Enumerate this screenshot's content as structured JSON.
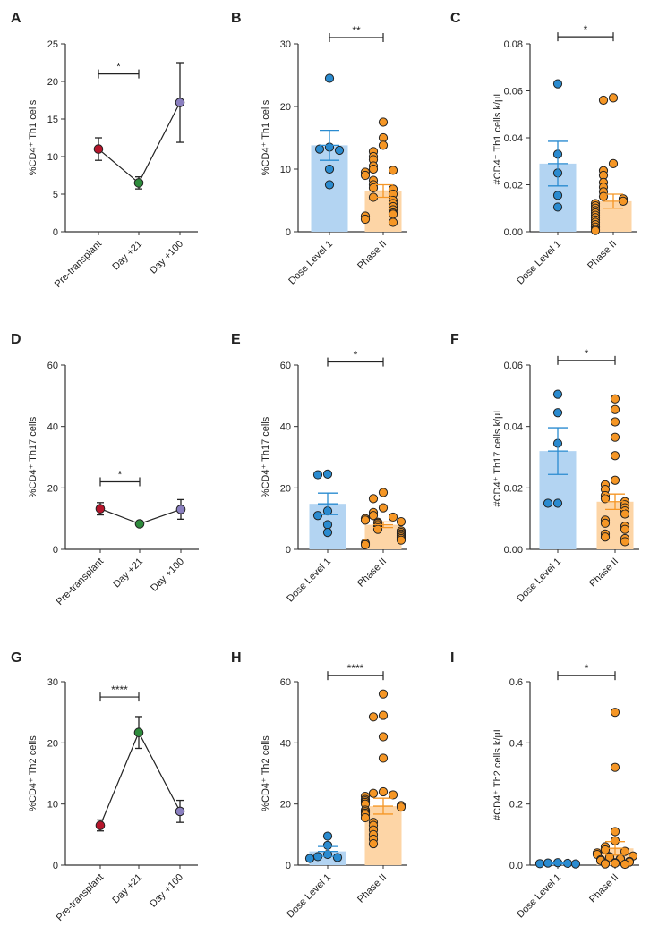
{
  "colors": {
    "dose_bar": "#b3d4f2",
    "dose_point": "#2a8bd0",
    "dose_error": "#2a8bd0",
    "phase_bar": "#fdd5a6",
    "phase_point": "#f59625",
    "phase_error": "#f59625",
    "pre_transplant": "#b5152b",
    "day21": "#2e8b3c",
    "day100": "#8a7fbf",
    "axis": "#333333"
  },
  "chart_data": [
    {
      "panel": "A",
      "type": "line",
      "ylabel_html": "%CD4⁺ Th1 cells",
      "ylim": [
        0,
        25
      ],
      "yticks": [
        0,
        5,
        10,
        15,
        20,
        25
      ],
      "ytick_labels": [
        "0",
        "5",
        "10",
        "15",
        "20",
        "25"
      ],
      "categories": [
        "Pre-transplant",
        "Day +21",
        "Day +100"
      ],
      "series": [
        {
          "values": [
            11,
            6.5,
            17.2
          ],
          "errors": [
            1.5,
            0.8,
            5.3
          ]
        }
      ],
      "point_colors": [
        "pre_transplant",
        "day21",
        "day100"
      ],
      "significance": [
        {
          "from": 0,
          "to": 1,
          "label": "*",
          "y": 21
        }
      ]
    },
    {
      "panel": "B",
      "type": "bar",
      "ylabel_html": "%CD4⁺ Th1 cells",
      "ylim": [
        0,
        30
      ],
      "yticks": [
        0,
        10,
        20,
        30
      ],
      "ytick_labels": [
        "0",
        "10",
        "20",
        "30"
      ],
      "categories": [
        "Dose Level 1",
        "Phase II"
      ],
      "values": [
        13.8,
        6.5
      ],
      "errors": [
        2.4,
        1.0
      ],
      "points": [
        [
          24.5,
          13.5,
          13.2,
          13.0,
          10.0,
          7.5
        ],
        [
          17.5,
          15.0,
          13.8,
          12.8,
          12.0,
          11.5,
          10.5,
          10.0,
          9.8,
          9.5,
          9.0,
          8.2,
          7.5,
          7.0,
          6.8,
          6.0,
          5.5,
          5.0,
          4.5,
          4.0,
          3.5,
          3.0,
          2.8,
          2.5,
          2.0,
          1.5
        ]
      ],
      "significance": [
        {
          "from": 0,
          "to": 1,
          "label": "**",
          "y": 31
        }
      ]
    },
    {
      "panel": "C",
      "type": "bar",
      "ylabel_html": "#CD4⁺ Th1 cells k/µL",
      "ylim": [
        0,
        0.08
      ],
      "yticks": [
        0,
        0.02,
        0.04,
        0.06,
        0.08
      ],
      "ytick_labels": [
        "0.00",
        "0.02",
        "0.04",
        "0.06",
        "0.08"
      ],
      "categories": [
        "Dose Level 1",
        "Phase II"
      ],
      "values": [
        0.029,
        0.013
      ],
      "errors": [
        0.0095,
        0.003
      ],
      "points": [
        [
          0.063,
          0.033,
          0.025,
          0.0155,
          0.0105
        ],
        [
          0.057,
          0.056,
          0.029,
          0.026,
          0.024,
          0.021,
          0.019,
          0.017,
          0.015,
          0.014,
          0.013,
          0.012,
          0.011,
          0.01,
          0.009,
          0.008,
          0.007,
          0.006,
          0.005,
          0.004,
          0.003,
          0.002,
          0.001,
          0.0005
        ]
      ],
      "significance": [
        {
          "from": 0,
          "to": 1,
          "label": "*",
          "y": 0.083
        }
      ]
    },
    {
      "panel": "D",
      "type": "line",
      "ylabel_html": "%CD4⁺ Th17 cells",
      "ylim": [
        0,
        60
      ],
      "yticks": [
        0,
        20,
        40,
        60
      ],
      "ytick_labels": [
        "0",
        "20",
        "40",
        "60"
      ],
      "categories": [
        "Pre-transplant",
        "Day +21",
        "Day +100"
      ],
      "series": [
        {
          "values": [
            13.2,
            8.3,
            13.0
          ],
          "errors": [
            2.0,
            0.8,
            3.2
          ]
        }
      ],
      "point_colors": [
        "pre_transplant",
        "day21",
        "day100"
      ],
      "significance": [
        {
          "from": 0,
          "to": 1,
          "label": "*",
          "y": 22
        }
      ]
    },
    {
      "panel": "E",
      "type": "bar",
      "ylabel_html": "%CD4⁺ Th17 cells",
      "ylim": [
        0,
        60
      ],
      "yticks": [
        0,
        20,
        40,
        60
      ],
      "ytick_labels": [
        "0",
        "20",
        "40",
        "60"
      ],
      "categories": [
        "Dose Level 1",
        "Phase II"
      ],
      "values": [
        14.8,
        8.0
      ],
      "errors": [
        3.5,
        0.9
      ],
      "points": [
        [
          24.5,
          24.3,
          12.5,
          11.0,
          8.0,
          5.5
        ],
        [
          18.5,
          16.5,
          13.5,
          12.0,
          11.0,
          10.5,
          10.0,
          9.5,
          9.0,
          8.8,
          8.5,
          8.0,
          7.5,
          7.0,
          6.5,
          6.0,
          5.5,
          5.0,
          4.5,
          4.0,
          3.5,
          3.0,
          2.0,
          1.5
        ]
      ],
      "significance": [
        {
          "from": 0,
          "to": 1,
          "label": "*",
          "y": 61
        }
      ]
    },
    {
      "panel": "F",
      "type": "bar",
      "ylabel_html": "#CD4⁺ Th17 cells k/µL",
      "ylim": [
        0,
        0.06
      ],
      "yticks": [
        0,
        0.02,
        0.04,
        0.06
      ],
      "ytick_labels": [
        "0.00",
        "0.02",
        "0.04",
        "0.06"
      ],
      "categories": [
        "Dose Level 1",
        "Phase II"
      ],
      "values": [
        0.032,
        0.0155
      ],
      "errors": [
        0.0076,
        0.0025
      ],
      "points": [
        [
          0.0505,
          0.0445,
          0.0345,
          0.015,
          0.015
        ],
        [
          0.049,
          0.0455,
          0.0415,
          0.0365,
          0.0305,
          0.0225,
          0.021,
          0.0195,
          0.0175,
          0.0165,
          0.0155,
          0.0145,
          0.0135,
          0.0125,
          0.0115,
          0.0095,
          0.0085,
          0.0075,
          0.0065,
          0.005,
          0.004,
          0.0035,
          0.0025
        ]
      ],
      "significance": [
        {
          "from": 0,
          "to": 1,
          "label": "*",
          "y": 0.0615
        }
      ]
    },
    {
      "panel": "G",
      "type": "line",
      "ylabel_html": "%CD4⁺ Th2 cells",
      "ylim": [
        0,
        30
      ],
      "yticks": [
        0,
        10,
        20,
        30
      ],
      "ytick_labels": [
        "0",
        "10",
        "20",
        "30"
      ],
      "categories": [
        "Pre-transplant",
        "Day +21",
        "Day +100"
      ],
      "series": [
        {
          "values": [
            6.5,
            21.7,
            8.8
          ],
          "errors": [
            0.9,
            2.6,
            1.8
          ]
        }
      ],
      "point_colors": [
        "pre_transplant",
        "day21",
        "day100"
      ],
      "significance": [
        {
          "from": 0,
          "to": 1,
          "label": "****",
          "y": 27.5
        }
      ]
    },
    {
      "panel": "H",
      "type": "bar",
      "ylabel_html": "%CD4⁺ Th2 cells",
      "ylim": [
        0,
        60
      ],
      "yticks": [
        0,
        20,
        40,
        60
      ],
      "ytick_labels": [
        "0",
        "20",
        "40",
        "60"
      ],
      "categories": [
        "Dose Level 1",
        "Phase II"
      ],
      "values": [
        4.5,
        19.3
      ],
      "errors": [
        1.6,
        2.6
      ],
      "points": [
        [
          9.5,
          6.5,
          3.5,
          2.8,
          2.5,
          2.2
        ],
        [
          56,
          49,
          48.5,
          42,
          35,
          24,
          23.5,
          23,
          22.5,
          21.5,
          21,
          20.5,
          20,
          19.5,
          19,
          18,
          17.5,
          17,
          16.5,
          15.5,
          14,
          13,
          11.5,
          10,
          8.5,
          7
        ]
      ],
      "significance": [
        {
          "from": 0,
          "to": 1,
          "label": "****",
          "y": 62
        }
      ]
    },
    {
      "panel": "I",
      "type": "bar",
      "ylabel_html": "#CD4⁺ Th2 cells k/µL",
      "ylim": [
        0,
        0.6
      ],
      "yticks": [
        0,
        0.2,
        0.4,
        0.6
      ],
      "ytick_labels": [
        "0.0",
        "0.2",
        "0.4",
        "0.6"
      ],
      "categories": [
        "Dose Level 1",
        "Phase II"
      ],
      "values": [
        0.006,
        0.055
      ],
      "errors": [
        0.002,
        0.022
      ],
      "points": [
        [
          0.008,
          0.007,
          0.006,
          0.005,
          0.004
        ],
        [
          0.5,
          0.32,
          0.11,
          0.08,
          0.06,
          0.05,
          0.045,
          0.04,
          0.035,
          0.03,
          0.028,
          0.025,
          0.022,
          0.02,
          0.018,
          0.015,
          0.012,
          0.01,
          0.008,
          0.006,
          0.005,
          0.004,
          0.003
        ]
      ],
      "significance": [
        {
          "from": 0,
          "to": 1,
          "label": "*",
          "y": 0.62
        }
      ]
    }
  ]
}
